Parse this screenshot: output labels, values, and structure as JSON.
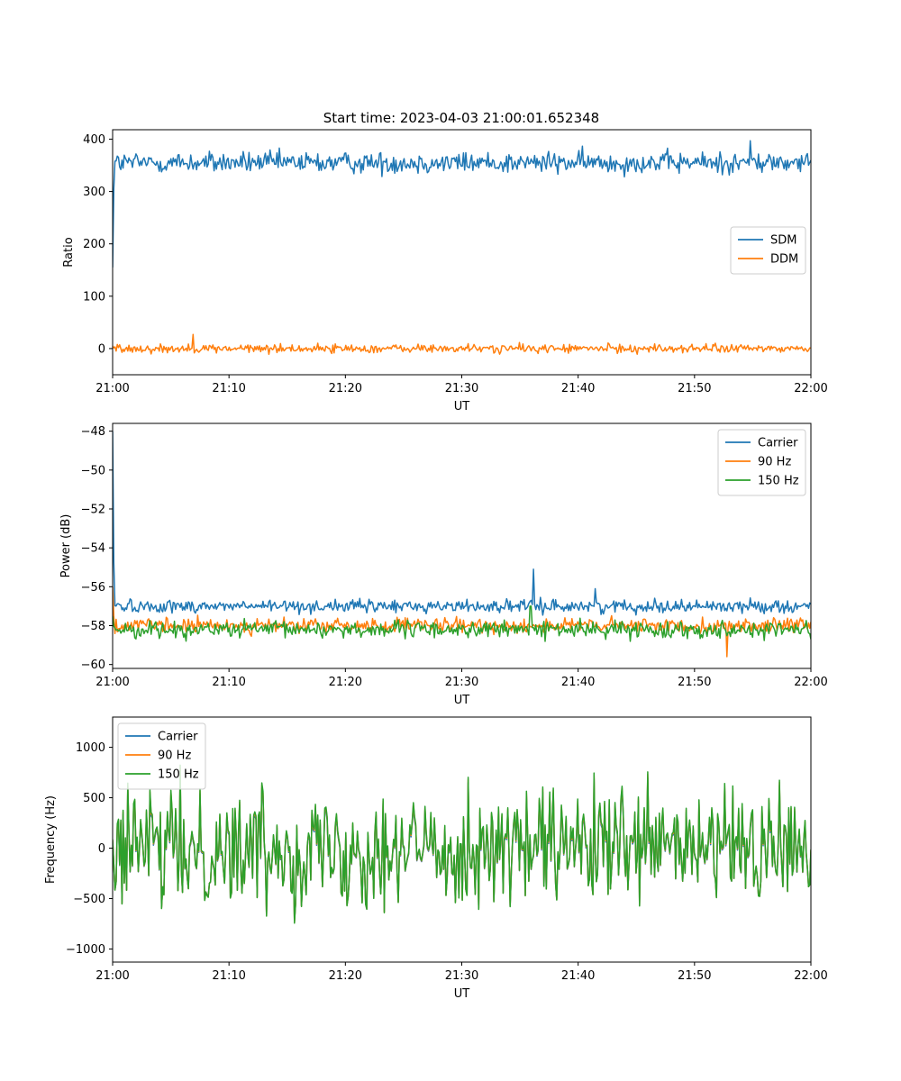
{
  "figure": {
    "title": "Start time: 2023-04-03 21:00:01.652348"
  },
  "chart_data": [
    {
      "type": "line",
      "xlabel": "UT",
      "ylabel": "Ratio",
      "x_range": [
        "21:00",
        "22:00"
      ],
      "x_ticks": [
        "21:00",
        "21:10",
        "21:20",
        "21:30",
        "21:40",
        "21:50",
        "22:00"
      ],
      "ylim": [
        -50,
        418
      ],
      "y_ticks": [
        0,
        100,
        200,
        300,
        400
      ],
      "legend_position": "center-right",
      "grid": false,
      "series": [
        {
          "name": "SDM",
          "color": "#1f77b4",
          "initial_value": 155,
          "baseline": 355,
          "noise_amplitude": 22,
          "spikes": [
            {
              "minute": 54.8,
              "value": 397
            }
          ]
        },
        {
          "name": "DDM",
          "color": "#ff7f0e",
          "initial_value": 5,
          "baseline": 0,
          "noise_amplitude": 9,
          "spikes": [
            {
              "minute": 6.9,
              "value": 27
            }
          ]
        }
      ]
    },
    {
      "type": "line",
      "xlabel": "UT",
      "ylabel": "Power (dB)",
      "x_range": [
        "21:00",
        "22:00"
      ],
      "x_ticks": [
        "21:00",
        "21:10",
        "21:20",
        "21:30",
        "21:40",
        "21:50",
        "22:00"
      ],
      "ylim": [
        -60.2,
        -47.6
      ],
      "y_ticks": [
        -60,
        -58,
        -56,
        -54,
        -52,
        -50,
        -48
      ],
      "legend_position": "top-right",
      "grid": false,
      "series": [
        {
          "name": "Carrier",
          "color": "#1f77b4",
          "initial_value": -48,
          "baseline": -57.0,
          "noise_amplitude": 0.35,
          "spikes": [
            {
              "minute": 36.2,
              "value": -55.1
            },
            {
              "minute": 41.5,
              "value": -56.1
            }
          ]
        },
        {
          "name": "90 Hz",
          "color": "#ff7f0e",
          "initial_value": -56,
          "baseline": -58.0,
          "noise_amplitude": 0.4,
          "spikes": [
            {
              "minute": 52.8,
              "value": -59.6
            }
          ]
        },
        {
          "name": "150 Hz",
          "color": "#2ca02c",
          "initial_value": -57.5,
          "baseline": -58.2,
          "noise_amplitude": 0.45,
          "spikes": [
            {
              "minute": 35.9,
              "value": -57.0
            }
          ]
        }
      ]
    },
    {
      "type": "line",
      "xlabel": "UT",
      "ylabel": "Frequency (Hz)",
      "x_range": [
        "21:00",
        "22:00"
      ],
      "x_ticks": [
        "21:00",
        "21:10",
        "21:20",
        "21:30",
        "21:40",
        "21:50",
        "22:00"
      ],
      "ylim": [
        -1130,
        1300
      ],
      "y_ticks": [
        -1000,
        -500,
        0,
        500,
        1000
      ],
      "legend_position": "top-left",
      "grid": false,
      "series": [
        {
          "name": "Carrier",
          "color": "#1f77b4",
          "offset": -60
        },
        {
          "name": "90 Hz",
          "color": "#ff7f0e",
          "offset": -25
        },
        {
          "name": "150 Hz",
          "color": "#2ca02c",
          "offset": 0
        }
      ],
      "frequency_noise": {
        "baseline": 0,
        "amplitude": 1150
      }
    }
  ]
}
